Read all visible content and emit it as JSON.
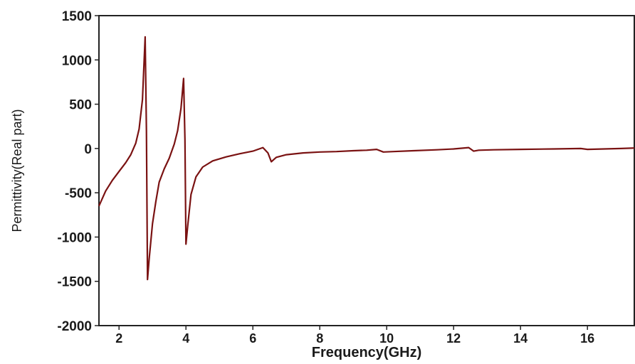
{
  "chart_data": {
    "type": "line",
    "xlabel": "Frequency(GHz)",
    "ylabel": "Permittivity(Real part)",
    "xlim": [
      1.4,
      17.4
    ],
    "ylim": [
      -2000,
      1500
    ],
    "xticks": [
      2,
      4,
      6,
      8,
      10,
      12,
      14,
      16
    ],
    "yticks": [
      1500,
      1000,
      500,
      0,
      -500,
      -1000,
      -1500,
      -2000
    ],
    "grid": false,
    "legend": "none",
    "line_color": "#7a1212",
    "series": [
      {
        "x": [
          1.4,
          1.6,
          1.8,
          2.0,
          2.2,
          2.35,
          2.5,
          2.6,
          2.7,
          2.78,
          2.82,
          2.85,
          2.9,
          3.0,
          3.1,
          3.2,
          3.35,
          3.5,
          3.65,
          3.75,
          3.85,
          3.93,
          3.97,
          4.0,
          4.05,
          4.15,
          4.3,
          4.5,
          4.8,
          5.2,
          5.6,
          6.0,
          6.3,
          6.45,
          6.55,
          6.7,
          7.0,
          7.5,
          8.0,
          8.5,
          9.0,
          9.4,
          9.7,
          9.9,
          10.2,
          10.8,
          11.5,
          12.0,
          12.45,
          12.6,
          12.75,
          13.2,
          14.0,
          15.0,
          15.8,
          16.0,
          16.5,
          17.0,
          17.4
        ],
        "y": [
          -650,
          -480,
          -360,
          -260,
          -160,
          -70,
          60,
          220,
          550,
          1260,
          200,
          -1480,
          -1250,
          -850,
          -600,
          -380,
          -230,
          -110,
          50,
          200,
          450,
          790,
          100,
          -1080,
          -880,
          -520,
          -320,
          -210,
          -140,
          -95,
          -60,
          -30,
          10,
          -50,
          -150,
          -100,
          -70,
          -50,
          -40,
          -35,
          -25,
          -20,
          -10,
          -40,
          -35,
          -25,
          -15,
          -5,
          10,
          -30,
          -20,
          -15,
          -10,
          -5,
          0,
          -10,
          -5,
          0,
          5
        ]
      }
    ]
  }
}
